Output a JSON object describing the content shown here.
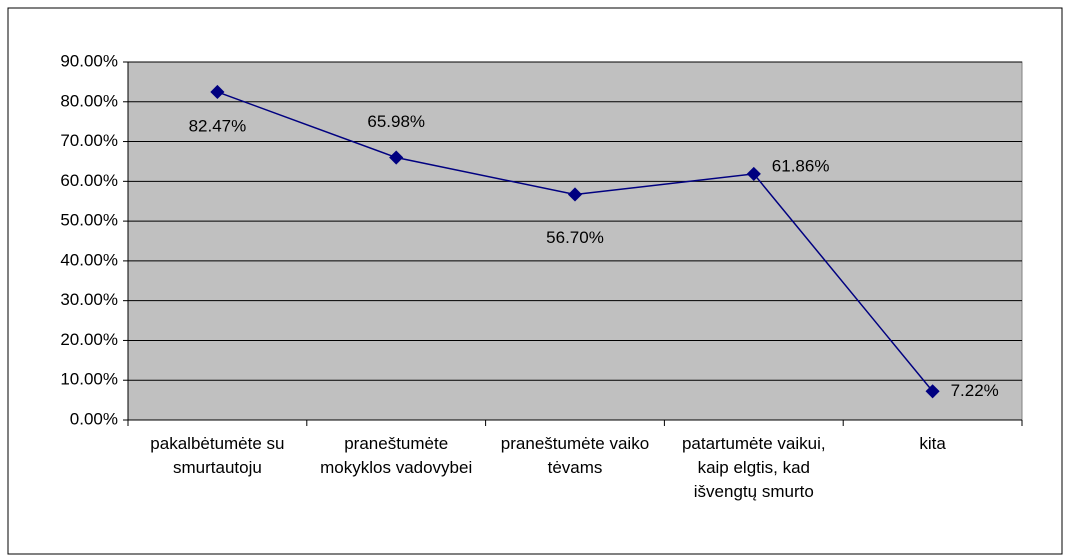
{
  "chart_data": {
    "type": "line",
    "categories": [
      "pakalbėtumėte su smurtautoju",
      "praneštumėte mokyklos vadovybei",
      "praneštumėte vaiko tėvams",
      "patartumėte vaikui, kaip elgtis, kad išvengtų smurto",
      "kita"
    ],
    "series": [
      {
        "name": "",
        "color": "#000080",
        "values": [
          82.47,
          65.98,
          56.7,
          61.86,
          7.22
        ],
        "value_labels": [
          "82.47%",
          "65.98%",
          "56.70%",
          "61.86%",
          "7.22%"
        ]
      }
    ],
    "ylim": [
      0,
      90
    ],
    "yticks": [
      {
        "value": 0,
        "label": "0.00%"
      },
      {
        "value": 10,
        "label": "10.00%"
      },
      {
        "value": 20,
        "label": "20.00%"
      },
      {
        "value": 30,
        "label": "30.00%"
      },
      {
        "value": 40,
        "label": "40.00%"
      },
      {
        "value": 50,
        "label": "50.00%"
      },
      {
        "value": 60,
        "label": "60.00%"
      },
      {
        "value": 70,
        "label": "70.00%"
      },
      {
        "value": 80,
        "label": "80.00%"
      },
      {
        "value": 90,
        "label": "90.00%"
      }
    ],
    "grid": true,
    "plot_background": "#c0c0c0"
  }
}
